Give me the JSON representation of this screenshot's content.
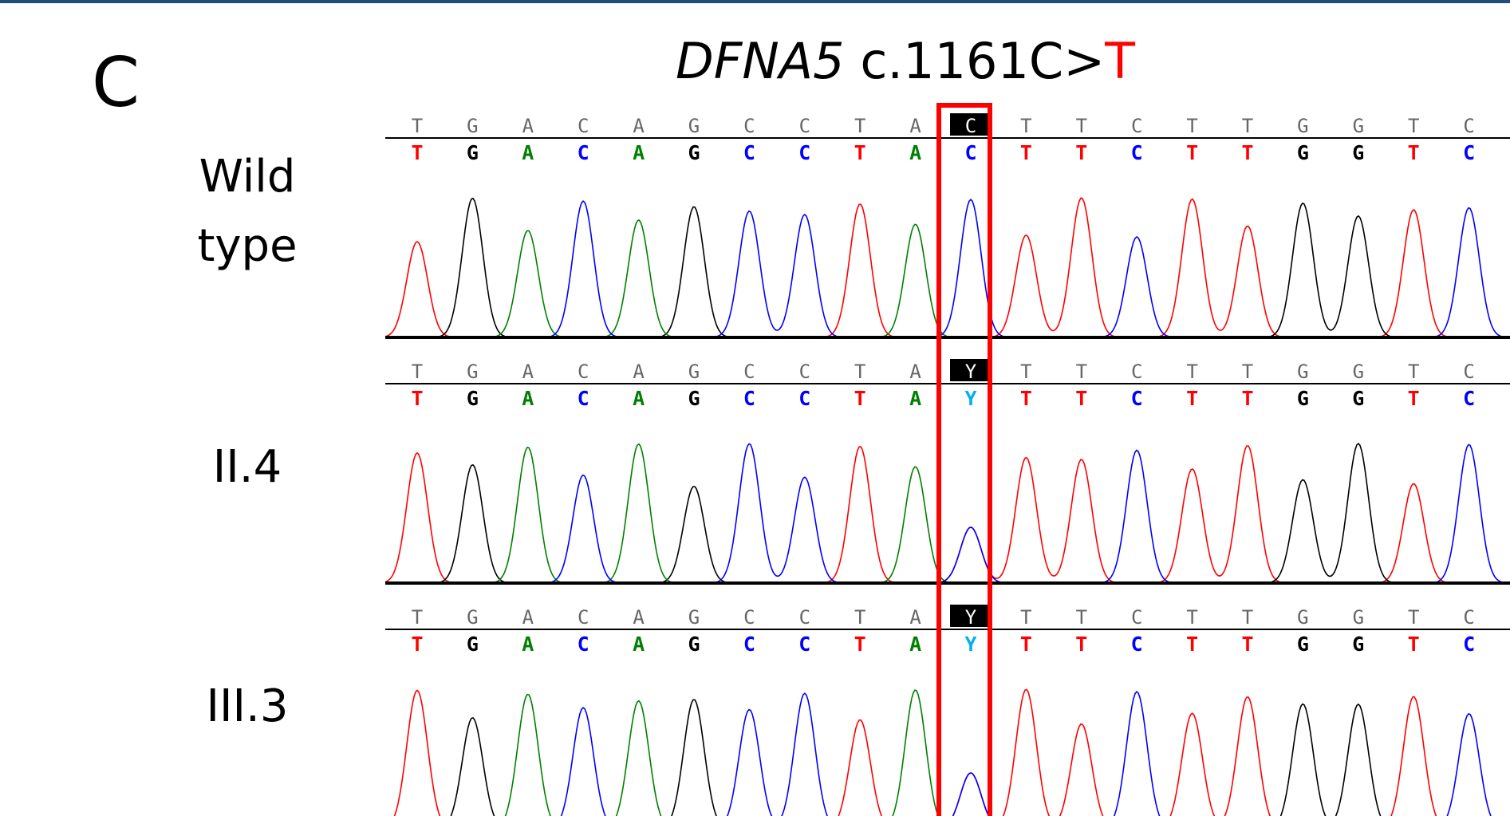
{
  "panel_label": "C",
  "title": {
    "gene": "DFNA5",
    "variant": " c.1161C>",
    "alt": "T",
    "alt_color": "#ff0000"
  },
  "base_colors": {
    "A": "#008000",
    "C": "#0000ff",
    "G": "#000000",
    "T": "#ff0000",
    "Y": "#00b0f0"
  },
  "iupac": {
    "Y": [
      "C",
      "T"
    ]
  },
  "highlight_column": 10,
  "rows": [
    {
      "label": [
        "Wild",
        "type"
      ],
      "reference": [
        "T",
        "G",
        "A",
        "C",
        "A",
        "G",
        "C",
        "C",
        "T",
        "A",
        "C",
        "T",
        "T",
        "C",
        "T",
        "T",
        "G",
        "G",
        "T",
        "C"
      ],
      "calls": [
        "T",
        "G",
        "A",
        "C",
        "A",
        "G",
        "C",
        "C",
        "T",
        "A",
        "C",
        "T",
        "T",
        "C",
        "T",
        "T",
        "G",
        "G",
        "T",
        "C"
      ]
    },
    {
      "label": [
        "II.4"
      ],
      "reference": [
        "T",
        "G",
        "A",
        "C",
        "A",
        "G",
        "C",
        "C",
        "T",
        "A",
        "Y",
        "T",
        "T",
        "C",
        "T",
        "T",
        "G",
        "G",
        "T",
        "C"
      ],
      "calls": [
        "T",
        "G",
        "A",
        "C",
        "A",
        "G",
        "C",
        "C",
        "T",
        "A",
        "Y",
        "T",
        "T",
        "C",
        "T",
        "T",
        "G",
        "G",
        "T",
        "C"
      ]
    },
    {
      "label": [
        "III.3"
      ],
      "reference": [
        "T",
        "G",
        "A",
        "C",
        "A",
        "G",
        "C",
        "C",
        "T",
        "A",
        "Y",
        "T",
        "T",
        "C",
        "T",
        "T",
        "G",
        "G",
        "T",
        "C"
      ],
      "calls": [
        "T",
        "G",
        "A",
        "C",
        "A",
        "G",
        "C",
        "C",
        "T",
        "A",
        "Y",
        "T",
        "T",
        "C",
        "T",
        "T",
        "G",
        "G",
        "T",
        "C"
      ]
    }
  ]
}
